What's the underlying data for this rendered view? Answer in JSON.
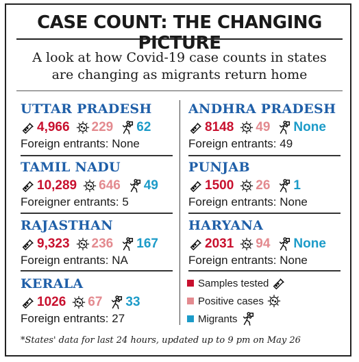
{
  "title": "CASE COUNT: THE CHANGING PICTURE",
  "subtitle_line1": "A look at how Covid-19 case counts in states",
  "subtitle_line2": "are changing as migrants return home",
  "colors": {
    "samples_tested": "#c8102e",
    "positive_cases": "#e38a8f",
    "migrants": "#1c9bc8",
    "state_name": "#1f5fa8"
  },
  "states": [
    {
      "name": "UTTAR PRADESH",
      "tested": "4,966",
      "positive": "229",
      "migrants": "62",
      "foreign": "Foreign entrants: None"
    },
    {
      "name": "TAMIL NADU",
      "tested": "10,289",
      "positive": "646",
      "migrants": "49",
      "foreign": "Foreigner entrants: 5"
    },
    {
      "name": "RAJASTHAN",
      "tested": "9,323",
      "positive": "236",
      "migrants": "167",
      "foreign": "Foreign entrants: NA"
    },
    {
      "name": "KERALA",
      "tested": "1026",
      "positive": "67",
      "migrants": "33",
      "foreign": "Foreign entrants: 27"
    },
    {
      "name": "ANDHRA PRADESH",
      "tested": "8148",
      "positive": "49",
      "migrants": "None",
      "foreign": "Foreign entrants: 49"
    },
    {
      "name": "PUNJAB",
      "tested": "1500",
      "positive": "26",
      "migrants": "1",
      "foreign": "Foreign entrants: None"
    },
    {
      "name": "HARYANA",
      "tested": "2031",
      "positive": "94",
      "migrants": "None",
      "foreign": "Foreign entrants: None"
    }
  ],
  "legend": {
    "samples_tested": "Samples tested",
    "positive_cases": "Positive cases",
    "migrants": "Migrants"
  },
  "icons": {
    "tested": "test-tube-icon",
    "positive": "virus-icon",
    "migrants": "walking-person-icon"
  },
  "footnote": "*States' data for last 24 hours, updated up to 9 pm on May 26"
}
